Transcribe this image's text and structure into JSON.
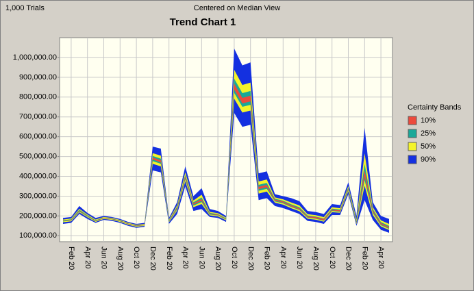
{
  "header": {
    "left": "1,000 Trials",
    "center": "Centered on Median View"
  },
  "chart_data": {
    "type": "band",
    "title": "Trend Chart 1",
    "legend_title": "Certainty Bands",
    "legend": "right",
    "grid": true,
    "categories": [
      null,
      "Feb 20",
      null,
      "Apr 20",
      null,
      "Jun 20",
      null,
      "Aug 20",
      null,
      "Oct 20",
      null,
      "Dec 20",
      null,
      "Feb 20",
      null,
      "Apr 20",
      null,
      "Jun 20",
      null,
      "Aug 20",
      null,
      "Oct 20",
      null,
      "Dec 20",
      null,
      "Feb 20",
      null,
      "Apr 20",
      null,
      "Jun 20",
      null,
      "Aug 20",
      null,
      "Oct 20",
      null,
      "Dec 20",
      null,
      "Feb 20",
      null,
      "Apr 20",
      null
    ],
    "ylim": [
      70000,
      1100000
    ],
    "yticks": [
      {
        "value": 100000,
        "label": "100,000.00"
      },
      {
        "value": 200000,
        "label": "200,000.00"
      },
      {
        "value": 300000,
        "label": "300,000.00"
      },
      {
        "value": 400000,
        "label": "400,000.00"
      },
      {
        "value": 500000,
        "label": "500,000.00"
      },
      {
        "value": 600000,
        "label": "600,000.00"
      },
      {
        "value": 700000,
        "label": "700,000.00"
      },
      {
        "value": 800000,
        "label": "800,000.00"
      },
      {
        "value": 900000,
        "label": "900,000.00"
      },
      {
        "value": 1000000,
        "label": "1,000,000.00"
      }
    ],
    "series": [
      {
        "name": "10%",
        "color": "#ec4a3c",
        "lower": [
          174000,
          179000,
          224000,
          199000,
          174000,
          189000,
          184000,
          174000,
          159000,
          149000,
          154000,
          485000,
          470000,
          174000,
          237000,
          391000,
          257000,
          276000,
          209000,
          204000,
          184000,
          838000,
          768000,
          778000,
          335000,
          345000,
          277000,
          267000,
          248000,
          233000,
          193000,
          188000,
          178000,
          228000,
          223000,
          333000,
          164000,
          398000,
          221000,
          157000,
          138000
        ],
        "upper": [
          176000,
          181000,
          227000,
          201000,
          176000,
          191000,
          186000,
          176000,
          161000,
          151000,
          156000,
          495000,
          481000,
          176000,
          243000,
          400000,
          264000,
          285000,
          212000,
          207000,
          186000,
          868000,
          796000,
          807000,
          347000,
          357000,
          283000,
          273000,
          254000,
          239000,
          198000,
          195000,
          185000,
          233000,
          228000,
          338000,
          168000,
          431000,
          229000,
          164000,
          144000
        ]
      },
      {
        "name": "25%",
        "color": "#1aa898",
        "lower": [
          172000,
          177000,
          222000,
          197000,
          173000,
          188000,
          183000,
          173000,
          158000,
          148000,
          153000,
          477000,
          463000,
          172000,
          233000,
          385000,
          252000,
          270000,
          207000,
          202000,
          182000,
          821000,
          751000,
          761000,
          327000,
          337000,
          273000,
          263000,
          245000,
          230000,
          191000,
          186000,
          176000,
          225000,
          221000,
          330000,
          162000,
          381000,
          215000,
          153000,
          135000
        ],
        "upper": [
          178000,
          183000,
          231000,
          203000,
          178000,
          192000,
          187000,
          177000,
          162000,
          152000,
          157000,
          503000,
          489000,
          178000,
          247000,
          407000,
          269000,
          293000,
          216000,
          209000,
          188000,
          893000,
          820000,
          831000,
          357000,
          367000,
          287000,
          277000,
          259000,
          244000,
          202000,
          197000,
          187000,
          237000,
          232000,
          343000,
          173000,
          462000,
          235000,
          169000,
          150000
        ]
      },
      {
        "name": "50%",
        "color": "#f4f42a",
        "lower": [
          168000,
          173000,
          218000,
          193000,
          170000,
          185000,
          180000,
          170000,
          155000,
          145000,
          150000,
          463000,
          450000,
          168000,
          227000,
          375000,
          244000,
          260000,
          203000,
          198000,
          178000,
          792000,
          722000,
          732000,
          313000,
          323000,
          267000,
          257000,
          239000,
          224000,
          186000,
          181000,
          171000,
          219000,
          216000,
          324000,
          158000,
          352000,
          205000,
          147000,
          129000
        ],
        "upper": [
          182000,
          187000,
          236000,
          207000,
          182000,
          195000,
          190000,
          180000,
          165000,
          155000,
          160000,
          517000,
          504000,
          182000,
          254000,
          420000,
          278000,
          307000,
          221000,
          214000,
          192000,
          938000,
          861000,
          873000,
          374000,
          384000,
          294000,
          284000,
          268000,
          253000,
          209000,
          204000,
          194000,
          244000,
          239000,
          351000,
          181000,
          516000,
          245000,
          178000,
          160000
        ]
      },
      {
        "name": "90%",
        "color": "#1430e0",
        "lower": [
          160000,
          165000,
          210000,
          185000,
          165000,
          180000,
          175000,
          165000,
          150000,
          140000,
          145000,
          430000,
          420000,
          160000,
          210000,
          350000,
          225000,
          235000,
          195000,
          190000,
          170000,
          720000,
          650000,
          660000,
          280000,
          290000,
          250000,
          240000,
          225000,
          210000,
          175000,
          170000,
          160000,
          205000,
          205000,
          310000,
          150000,
          280000,
          180000,
          130000,
          115000
        ],
        "upper": [
          190000,
          195000,
          250000,
          215000,
          190000,
          200000,
          195000,
          185000,
          170000,
          160000,
          165000,
          550000,
          540000,
          190000,
          270000,
          450000,
          300000,
          340000,
          235000,
          225000,
          200000,
          1045000,
          960000,
          975000,
          415000,
          425000,
          310000,
          300000,
          290000,
          275000,
          225000,
          220000,
          210000,
          260000,
          255000,
          370000,
          200000,
          645000,
          270000,
          200000,
          185000
        ]
      }
    ]
  }
}
